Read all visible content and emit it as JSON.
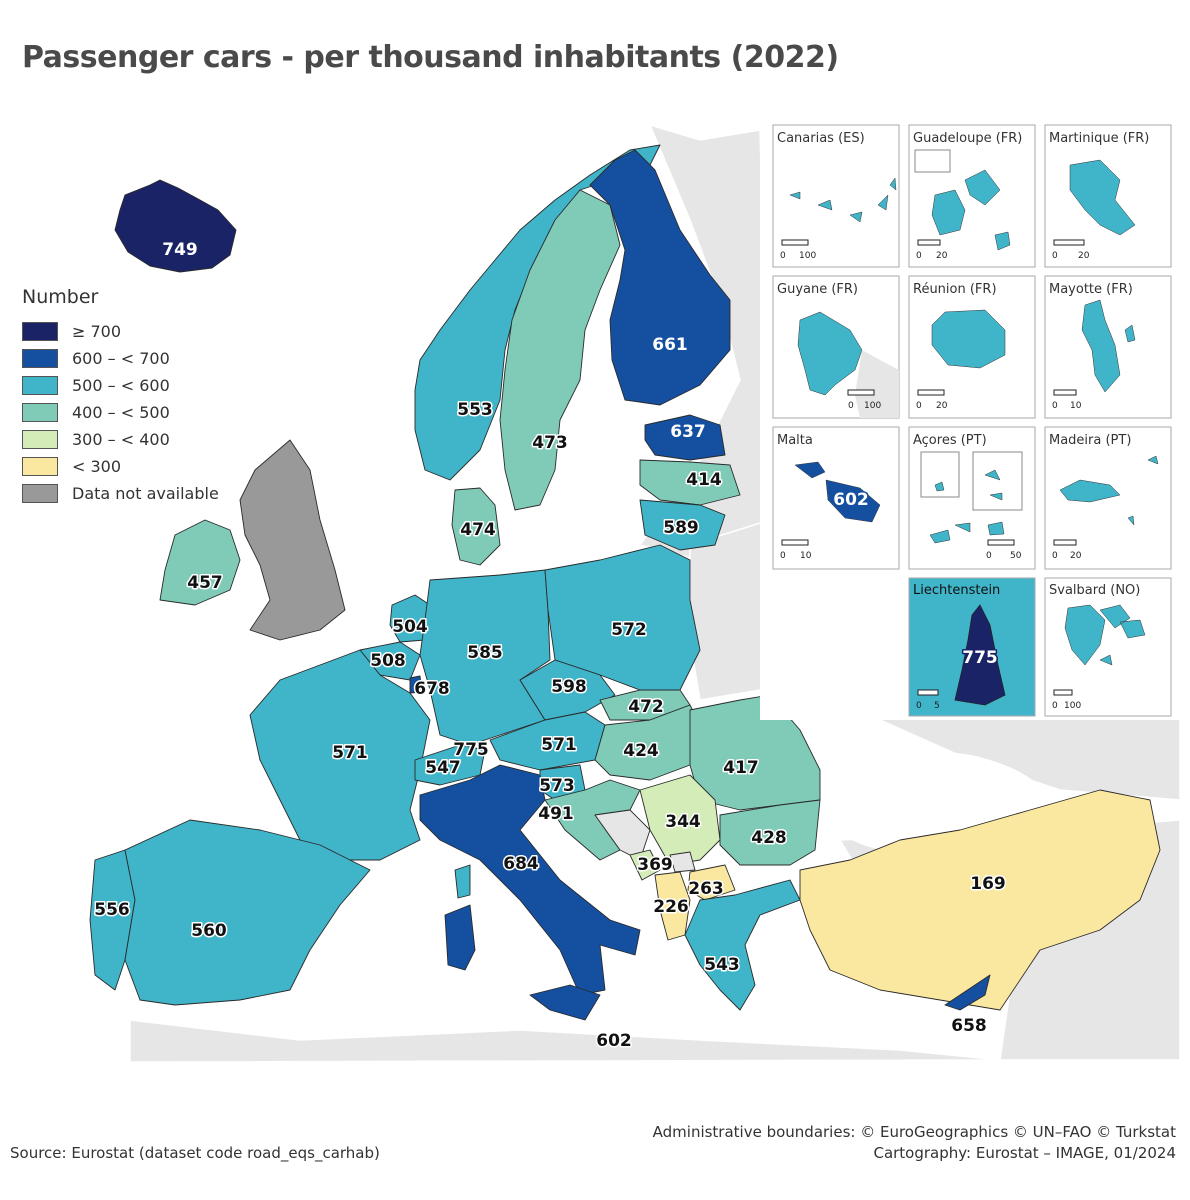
{
  "title": "Passenger cars - per thousand inhabitants (2022)",
  "legend": {
    "title": "Number",
    "items": [
      {
        "label": "≥ 700",
        "color": "#1b2367"
      },
      {
        "label": "600 – < 700",
        "color": "#1550a0"
      },
      {
        "label": "500 – < 600",
        "color": "#40b4c8"
      },
      {
        "label": "400 – < 500",
        "color": "#7fcbb8"
      },
      {
        "label": "300 – < 400",
        "color": "#d3ecb8"
      },
      {
        "label": "< 300",
        "color": "#fbe8a0"
      },
      {
        "label": "Data not available",
        "color": "#999999"
      }
    ]
  },
  "countries": [
    {
      "value": "749",
      "class": "≥ 700"
    },
    {
      "value": "661",
      "class": "600 – < 700"
    },
    {
      "value": "553",
      "class": "500 – < 600"
    },
    {
      "value": "473",
      "class": "400 – < 500"
    },
    {
      "value": "637",
      "class": "600 – < 700"
    },
    {
      "value": "414",
      "class": "400 – < 500"
    },
    {
      "value": "589",
      "class": "500 – < 600"
    },
    {
      "value": "474",
      "class": "400 – < 500"
    },
    {
      "value": "457",
      "class": "400 – < 500"
    },
    {
      "value": "504",
      "class": "500 – < 600"
    },
    {
      "value": "508",
      "class": "500 – < 600"
    },
    {
      "value": "678",
      "class": "600 – < 700"
    },
    {
      "value": "585",
      "class": "500 – < 600"
    },
    {
      "value": "572",
      "class": "500 – < 600"
    },
    {
      "value": "598",
      "class": "500 – < 600"
    },
    {
      "value": "472",
      "class": "400 – < 500"
    },
    {
      "value": "571",
      "class": "500 – < 600"
    },
    {
      "value": "775",
      "class": "≥ 700"
    },
    {
      "value": "547",
      "class": "500 – < 600"
    },
    {
      "value": "571",
      "class": "500 – < 600"
    },
    {
      "value": "424",
      "class": "400 – < 500"
    },
    {
      "value": "417",
      "class": "400 – < 500"
    },
    {
      "value": "573",
      "class": "500 – < 600"
    },
    {
      "value": "491",
      "class": "400 – < 500"
    },
    {
      "value": "344",
      "class": "300 – < 400"
    },
    {
      "value": "428",
      "class": "400 – < 500"
    },
    {
      "value": "684",
      "class": "600 – < 700"
    },
    {
      "value": "369",
      "class": "300 – < 400"
    },
    {
      "value": "263",
      "class": "< 300"
    },
    {
      "value": "226",
      "class": "< 300"
    },
    {
      "value": "169",
      "class": "< 300"
    },
    {
      "value": "556",
      "class": "500 – < 600"
    },
    {
      "value": "560",
      "class": "500 – < 600"
    },
    {
      "value": "543",
      "class": "500 – < 600"
    },
    {
      "value": "602",
      "class": "600 – < 700"
    },
    {
      "value": "658",
      "class": "600 – < 700"
    }
  ],
  "insets": [
    {
      "title": "Canarias (ES)",
      "scale": [
        "0",
        "100"
      ]
    },
    {
      "title": "Guadeloupe (FR)",
      "scale": [
        "0",
        "20"
      ]
    },
    {
      "title": "Martinique (FR)",
      "scale": [
        "0",
        "20"
      ]
    },
    {
      "title": "Guyane (FR)",
      "scale": [
        "0",
        "100"
      ]
    },
    {
      "title": "Réunion (FR)",
      "scale": [
        "0",
        "20"
      ]
    },
    {
      "title": "Mayotte (FR)",
      "scale": [
        "0",
        "10"
      ]
    },
    {
      "title": "Malta",
      "scale": [
        "0",
        "10"
      ],
      "value": "602"
    },
    {
      "title": "Açores (PT)",
      "scale": [
        "0",
        "50"
      ]
    },
    {
      "title": "Madeira (PT)",
      "scale": [
        "0",
        "20"
      ]
    },
    {
      "title": "Liechtenstein",
      "scale": [
        "0",
        "5"
      ],
      "value": "775"
    },
    {
      "title": "Svalbard (NO)",
      "scale": [
        "0",
        "100"
      ]
    }
  ],
  "credits": {
    "boundaries": "Administrative boundaries: © EuroGeographics © UN–FAO © Turkstat",
    "cartography": "Cartography: Eurostat – IMAGE, 01/2024"
  },
  "source": "Source: Eurostat (dataset code road_eqs_carhab)"
}
